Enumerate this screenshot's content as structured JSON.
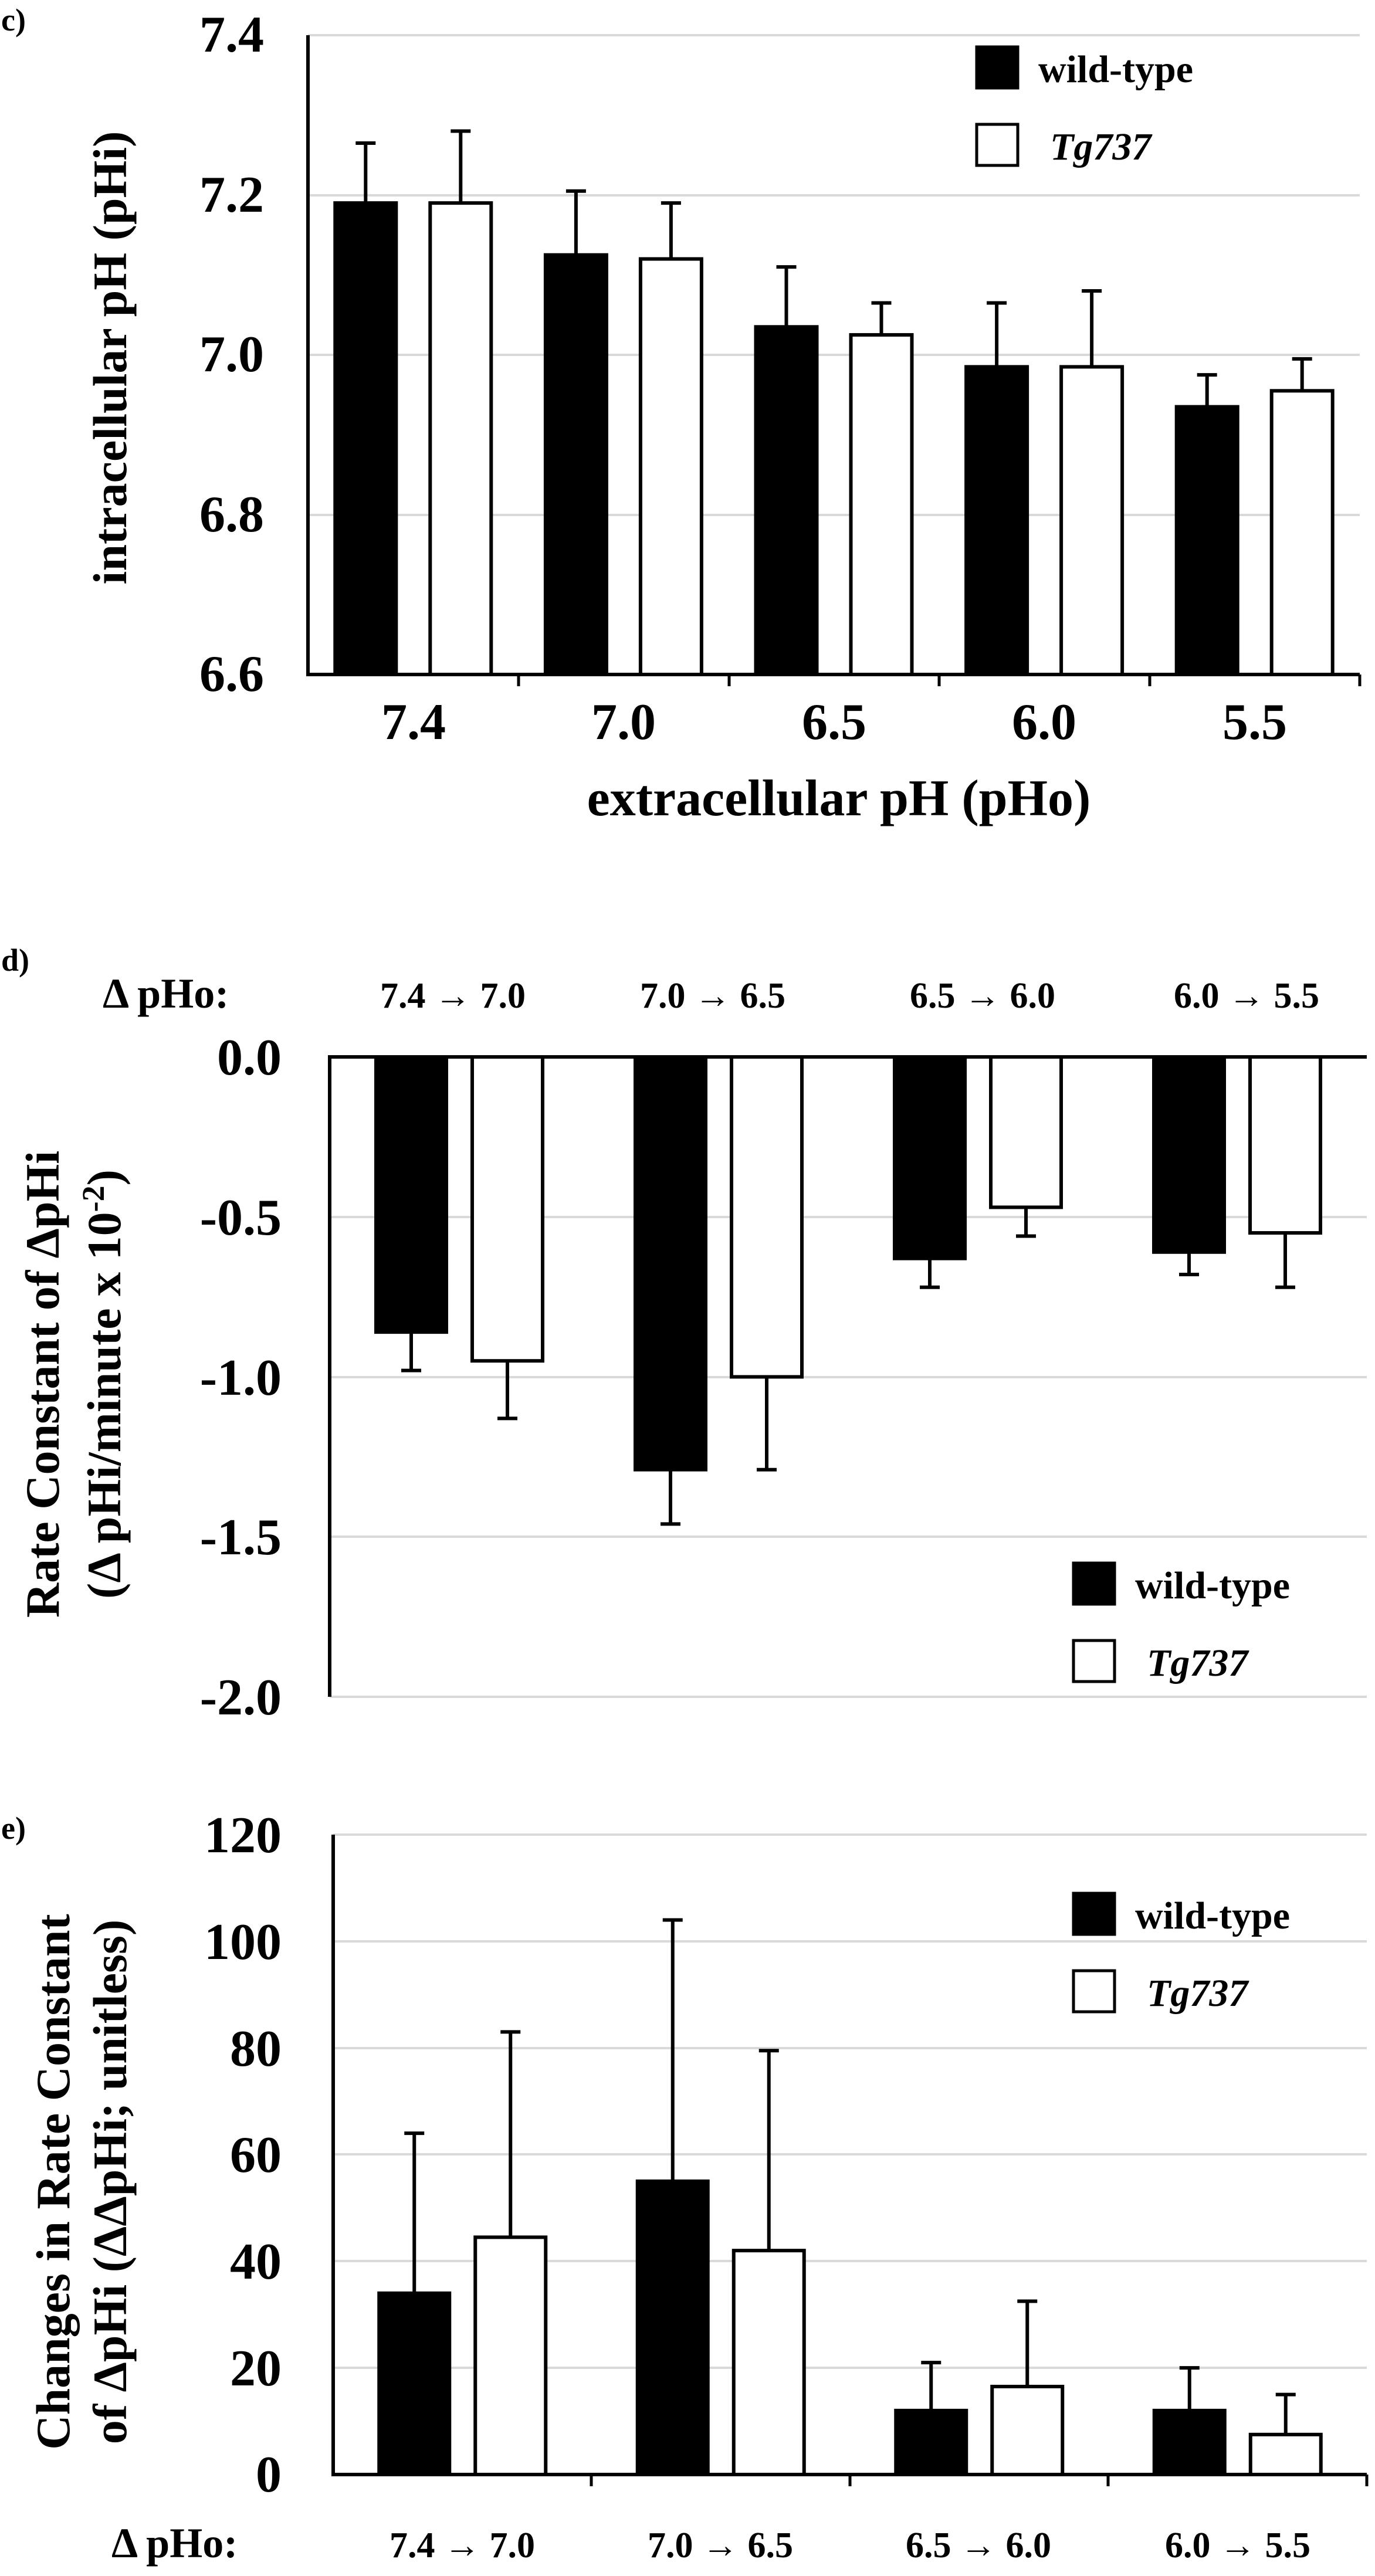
{
  "chart_data": [
    {
      "panel": "c)",
      "type": "bar",
      "xlabel": "extracellular pH (pHo)",
      "ylabel": "intracellular pH (pHi)",
      "ylim": [
        6.6,
        7.4
      ],
      "yticks": [
        "6.6",
        "6.8",
        "7.0",
        "7.2",
        "7.4"
      ],
      "categories": [
        "7.4",
        "7.0",
        "6.5",
        "6.0",
        "5.5"
      ],
      "series": [
        {
          "name": "wild-type",
          "fill": "#000000",
          "values": [
            7.19,
            7.125,
            7.035,
            6.985,
            6.935
          ],
          "errors": [
            0.075,
            0.08,
            0.075,
            0.08,
            0.04
          ]
        },
        {
          "name": "Tg737",
          "fill": "#ffffff",
          "values": [
            7.19,
            7.12,
            7.025,
            6.985,
            6.955
          ],
          "errors": [
            0.09,
            0.07,
            0.04,
            0.095,
            0.04
          ]
        }
      ],
      "legend": {
        "wild_type": "wild-type",
        "tg737": "Tg737"
      }
    },
    {
      "panel": "d)",
      "type": "bar",
      "delta_label": "Δ pHo:",
      "ylabel_line1": "Rate Constant of ΔpHi",
      "ylabel_line2": "(Δ pHi/minute x 10",
      "ylabel_sup": "-2",
      "ylabel_close": ")",
      "ylim": [
        -2.0,
        0.0
      ],
      "yticks": [
        "0.0",
        "-0.5",
        "-1.0",
        "-1.5",
        "-2.0"
      ],
      "categories": [
        "7.4 → 7.0",
        "7.0 → 6.5",
        "6.5 → 6.0",
        "6.0 → 5.5"
      ],
      "series": [
        {
          "name": "wild-type",
          "fill": "#000000",
          "values": [
            -0.86,
            -1.29,
            -0.63,
            -0.61
          ],
          "errors": [
            0.12,
            0.17,
            0.09,
            0.07
          ]
        },
        {
          "name": "Tg737",
          "fill": "#ffffff",
          "values": [
            -0.95,
            -1.0,
            -0.47,
            -0.55
          ],
          "errors": [
            0.18,
            0.29,
            0.09,
            0.17
          ]
        }
      ],
      "legend": {
        "wild_type": "wild-type",
        "tg737": "Tg737"
      }
    },
    {
      "panel": "e)",
      "type": "bar",
      "delta_label": "Δ pHo:",
      "ylabel_line1": "Changes in Rate Constant",
      "ylabel_line2": "of ΔpHi (ΔΔpHi; unitless)",
      "ylim": [
        0,
        120
      ],
      "yticks": [
        "0",
        "20",
        "40",
        "60",
        "80",
        "100",
        "120"
      ],
      "categories": [
        "7.4 → 7.0",
        "7.0 → 6.5",
        "6.5 → 6.0",
        "6.0 → 5.5"
      ],
      "series": [
        {
          "name": "wild-type",
          "fill": "#000000",
          "values": [
            34,
            55,
            12,
            12
          ],
          "errors": [
            30,
            49,
            9,
            8
          ]
        },
        {
          "name": "Tg737",
          "fill": "#ffffff",
          "values": [
            44.5,
            42,
            16.5,
            7.5
          ],
          "errors": [
            38.5,
            37.5,
            16,
            7.5
          ]
        }
      ],
      "legend": {
        "wild_type": "wild-type",
        "tg737": "Tg737"
      }
    }
  ]
}
